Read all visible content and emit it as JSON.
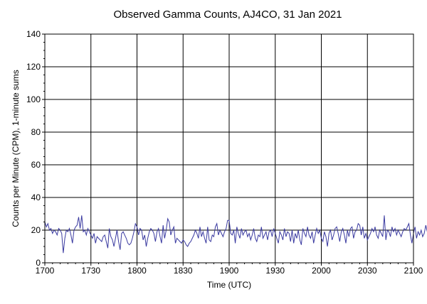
{
  "chart_data": {
    "type": "line",
    "title": "Observed Gamma Counts, AJ4CO, 31 Jan 2021",
    "xlabel": "Time (UTC)",
    "ylabel": "Counts per Minute (CPM), 1-minute sums",
    "x_start_minutes": 0,
    "x_tick_labels": [
      "1700",
      "1730",
      "1800",
      "1830",
      "1900",
      "1930",
      "2000",
      "2030",
      "2100"
    ],
    "y_tick_labels": [
      "0",
      "20",
      "40",
      "60",
      "80",
      "100",
      "120",
      "140"
    ],
    "ylim": [
      0,
      140
    ],
    "grid": true,
    "series": [
      {
        "name": "",
        "color": "#3a3aa0",
        "x_step_minutes": 1,
        "values": [
          25,
          22,
          24,
          20,
          21,
          18,
          20,
          19,
          17,
          21,
          20,
          18,
          6,
          15,
          20,
          19,
          21,
          17,
          12,
          20,
          22,
          23,
          28,
          21,
          29,
          19,
          20,
          17,
          21,
          19,
          17,
          15,
          18,
          12,
          16,
          15,
          14,
          13,
          16,
          17,
          13,
          9,
          21,
          16,
          14,
          10,
          15,
          20,
          13,
          8,
          18,
          19,
          17,
          15,
          12,
          11,
          12,
          15,
          19,
          24,
          22,
          17,
          21,
          20,
          14,
          17,
          10,
          15,
          19,
          21,
          20,
          18,
          13,
          19,
          21,
          16,
          12,
          23,
          15,
          20,
          27,
          25,
          17,
          20,
          22,
          12,
          15,
          14,
          13,
          12,
          14,
          13,
          11,
          10,
          12,
          13,
          15,
          17,
          20,
          18,
          15,
          22,
          16,
          19,
          15,
          12,
          22,
          14,
          13,
          17,
          16,
          22,
          24,
          17,
          20,
          18,
          16,
          19,
          21,
          26,
          26,
          18,
          17,
          20,
          12,
          22,
          18,
          15,
          21,
          17,
          19,
          20,
          16,
          18,
          14,
          17,
          21,
          15,
          13,
          17,
          16,
          22,
          15,
          17,
          19,
          14,
          19,
          20,
          16,
          21,
          18,
          15,
          12,
          19,
          17,
          14,
          21,
          16,
          19,
          18,
          13,
          20,
          12,
          18,
          15,
          20,
          14,
          11,
          21,
          18,
          16,
          22,
          17,
          15,
          19,
          12,
          17,
          21,
          18,
          20,
          15,
          13,
          19,
          16,
          10,
          18,
          20,
          14,
          17,
          21,
          22,
          18,
          13,
          19,
          21,
          17,
          12,
          20,
          16,
          21,
          22,
          15,
          19,
          20,
          24,
          23,
          17,
          22,
          15,
          18,
          14,
          16,
          18,
          21,
          19,
          22,
          17,
          15,
          20,
          18,
          16,
          29,
          14,
          20,
          19,
          16,
          22,
          19,
          21,
          17,
          20,
          18,
          16,
          19,
          21,
          20,
          22,
          24,
          17,
          12,
          18,
          22,
          15,
          19,
          17,
          20,
          16,
          18,
          23,
          19
        ]
      }
    ]
  }
}
